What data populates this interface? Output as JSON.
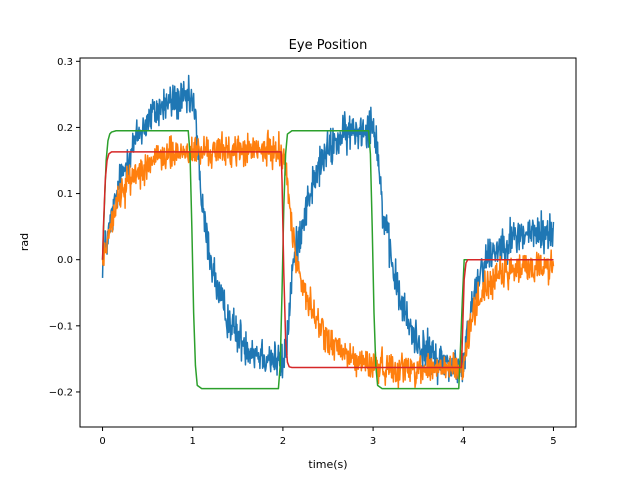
{
  "chart_data": {
    "type": "line",
    "title": "Eye Position",
    "xlabel": "time(s)",
    "ylabel": "rad",
    "xlim": [
      -0.25,
      5.25
    ],
    "ylim": [
      -0.253,
      0.305
    ],
    "xticks": [
      0,
      1,
      2,
      3,
      4,
      5
    ],
    "xtick_labels": [
      "0",
      "1",
      "2",
      "3",
      "4",
      "5"
    ],
    "yticks": [
      -0.2,
      -0.1,
      0.0,
      0.1,
      0.2,
      0.3
    ],
    "ytick_labels": [
      "−0.2",
      "−0.1",
      "0.0",
      "0.1",
      "0.2",
      "0.3"
    ],
    "grid": false,
    "series": [
      {
        "color": "#1f77b4",
        "noise": 0.015,
        "x": [
          0,
          0.1,
          0.2,
          0.3,
          0.4,
          0.5,
          0.6,
          0.7,
          0.8,
          0.9,
          1.0,
          1.05,
          1.1,
          1.2,
          1.3,
          1.4,
          1.5,
          1.6,
          1.7,
          1.8,
          1.9,
          2.0,
          2.05,
          2.1,
          2.2,
          2.3,
          2.4,
          2.5,
          2.6,
          2.7,
          2.8,
          2.9,
          3.0,
          3.05,
          3.1,
          3.2,
          3.3,
          3.4,
          3.5,
          3.6,
          3.7,
          3.8,
          3.9,
          4.0,
          4.05,
          4.1,
          4.2,
          4.3,
          4.4,
          4.5,
          4.6,
          4.7,
          4.8,
          4.9,
          5.0
        ],
        "y": [
          0.0,
          0.06,
          0.12,
          0.16,
          0.19,
          0.21,
          0.225,
          0.235,
          0.24,
          0.24,
          0.24,
          0.19,
          0.08,
          0.0,
          -0.06,
          -0.09,
          -0.115,
          -0.13,
          -0.14,
          -0.145,
          -0.15,
          -0.16,
          -0.12,
          -0.02,
          0.05,
          0.1,
          0.14,
          0.165,
          0.18,
          0.19,
          0.195,
          0.2,
          0.21,
          0.17,
          0.08,
          0.0,
          -0.06,
          -0.1,
          -0.125,
          -0.14,
          -0.15,
          -0.155,
          -0.16,
          -0.165,
          -0.11,
          -0.06,
          -0.01,
          0.01,
          0.02,
          0.03,
          0.035,
          0.04,
          0.04,
          0.04,
          0.04
        ]
      },
      {
        "color": "#ff7f0e",
        "noise": 0.012,
        "x": [
          0,
          0.05,
          0.1,
          0.2,
          0.3,
          0.4,
          0.5,
          0.6,
          0.7,
          0.8,
          0.9,
          1.0,
          1.2,
          1.5,
          1.8,
          2.0,
          2.05,
          2.1,
          2.2,
          2.3,
          2.4,
          2.5,
          2.6,
          2.7,
          2.8,
          2.9,
          3.0,
          3.2,
          3.5,
          3.8,
          4.0,
          4.05,
          4.1,
          4.2,
          4.3,
          4.4,
          4.5,
          4.6,
          4.7,
          4.8,
          4.9,
          5.0
        ],
        "y": [
          0.0,
          0.03,
          0.06,
          0.1,
          0.12,
          0.135,
          0.145,
          0.152,
          0.158,
          0.16,
          0.162,
          0.163,
          0.164,
          0.165,
          0.165,
          0.165,
          0.12,
          0.04,
          -0.03,
          -0.07,
          -0.1,
          -0.12,
          -0.135,
          -0.145,
          -0.152,
          -0.157,
          -0.16,
          -0.163,
          -0.165,
          -0.165,
          -0.165,
          -0.12,
          -0.08,
          -0.05,
          -0.035,
          -0.025,
          -0.02,
          -0.015,
          -0.012,
          -0.01,
          -0.01,
          -0.01
        ]
      },
      {
        "color": "#2ca02c",
        "noise": 0,
        "x": [
          0,
          0.02,
          0.04,
          0.06,
          0.08,
          0.1,
          0.15,
          0.2,
          0.95,
          0.97,
          0.99,
          1.01,
          1.03,
          1.05,
          1.1,
          1.2,
          1.95,
          1.97,
          1.99,
          2.01,
          2.03,
          2.05,
          2.1,
          2.2,
          2.95,
          2.97,
          2.99,
          3.01,
          3.03,
          3.05,
          3.1,
          3.2,
          3.95,
          3.97,
          3.99,
          4.01,
          4.03,
          4.05,
          4.1,
          4.2,
          5.0
        ],
        "y": [
          0.0,
          0.08,
          0.15,
          0.18,
          0.19,
          0.193,
          0.195,
          0.195,
          0.195,
          0.16,
          0.05,
          -0.08,
          -0.16,
          -0.19,
          -0.195,
          -0.195,
          -0.195,
          -0.16,
          -0.05,
          0.08,
          0.16,
          0.19,
          0.195,
          0.195,
          0.195,
          0.16,
          0.05,
          -0.08,
          -0.16,
          -0.19,
          -0.195,
          -0.195,
          -0.195,
          -0.13,
          -0.06,
          0.0,
          0.0,
          0.0,
          0.0,
          0.0,
          0.0
        ]
      },
      {
        "color": "#d62728",
        "noise": 0,
        "x": [
          0,
          0.01,
          0.03,
          0.05,
          0.07,
          0.1,
          0.2,
          1.98,
          1.99,
          2.01,
          2.03,
          2.05,
          2.07,
          2.1,
          3.98,
          3.99,
          4.01,
          4.03,
          4.05,
          4.1,
          5.0
        ],
        "y": [
          0.0,
          0.05,
          0.12,
          0.15,
          0.16,
          0.163,
          0.163,
          0.163,
          0.12,
          -0.02,
          -0.12,
          -0.155,
          -0.162,
          -0.163,
          -0.163,
          -0.12,
          -0.03,
          -0.005,
          0.0,
          0.0,
          0.0
        ]
      }
    ]
  }
}
